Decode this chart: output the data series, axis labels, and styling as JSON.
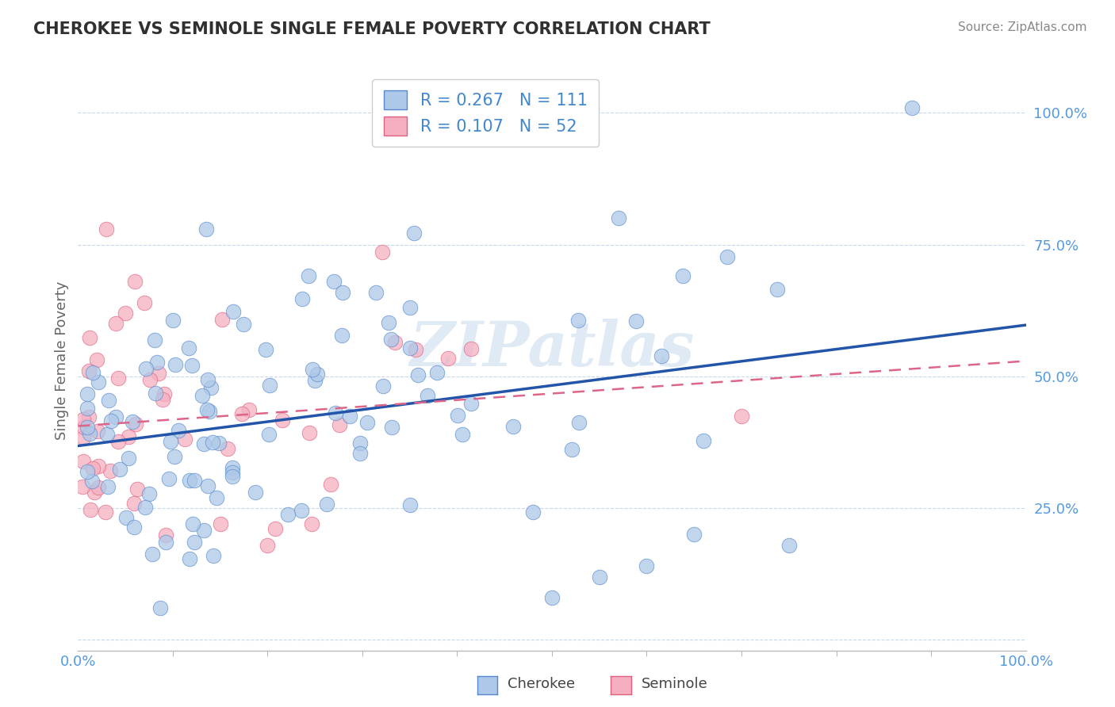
{
  "title": "CHEROKEE VS SEMINOLE SINGLE FEMALE POVERTY CORRELATION CHART",
  "source_text": "Source: ZipAtlas.com",
  "ylabel": "Single Female Poverty",
  "watermark": "ZIPatlas",
  "xlim": [
    0.0,
    1.0
  ],
  "ylim": [
    -0.02,
    1.08
  ],
  "cherokee_R": 0.267,
  "cherokee_N": 111,
  "seminole_R": 0.107,
  "seminole_N": 52,
  "cherokee_color": "#adc8e8",
  "seminole_color": "#f5afc0",
  "cherokee_edge_color": "#5588cc",
  "seminole_edge_color": "#e06080",
  "cherokee_line_color": "#2255aa",
  "seminole_line_color": "#dd6688",
  "background_color": "#ffffff",
  "grid_color": "#c8d8ec",
  "title_color": "#303030",
  "tick_color": "#5599dd",
  "legend_text_color": "#4488cc"
}
